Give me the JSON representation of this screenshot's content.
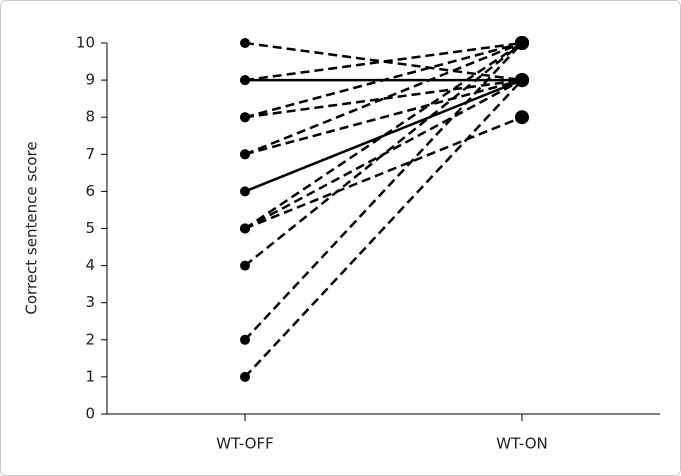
{
  "chart_data": {
    "type": "paired-line",
    "ylabel": "Correct sentence score",
    "categories": [
      "WT-OFF",
      "WT-ON"
    ],
    "ylim": [
      0,
      10
    ],
    "yticks": [
      0,
      1,
      2,
      3,
      4,
      5,
      6,
      7,
      8,
      9,
      10
    ],
    "series": [
      {
        "color": "#000000",
        "style": "dashed",
        "values": [
          10,
          9
        ]
      },
      {
        "color": "#000000",
        "style": "solid",
        "values": [
          9,
          9
        ]
      },
      {
        "color": "#000000",
        "style": "dashed",
        "values": [
          9,
          10
        ]
      },
      {
        "color": "#000000",
        "style": "dashed",
        "values": [
          8,
          10
        ]
      },
      {
        "color": "#000000",
        "style": "dashed",
        "values": [
          8,
          9
        ]
      },
      {
        "color": "#000000",
        "style": "dashed",
        "values": [
          7,
          10
        ]
      },
      {
        "color": "#000000",
        "style": "dashed",
        "values": [
          7,
          9
        ]
      },
      {
        "color": "#000000",
        "style": "solid",
        "values": [
          6,
          9
        ]
      },
      {
        "color": "#000000",
        "style": "dashed",
        "values": [
          5,
          10
        ]
      },
      {
        "color": "#000000",
        "style": "dashed",
        "values": [
          5,
          9
        ]
      },
      {
        "color": "#000000",
        "style": "dashed",
        "values": [
          5,
          8
        ]
      },
      {
        "color": "#000000",
        "style": "dashed",
        "values": [
          4,
          10
        ]
      },
      {
        "color": "#000000",
        "style": "dashed",
        "values": [
          2,
          10
        ]
      },
      {
        "color": "#000000",
        "style": "dashed",
        "values": [
          1,
          9
        ]
      }
    ]
  }
}
